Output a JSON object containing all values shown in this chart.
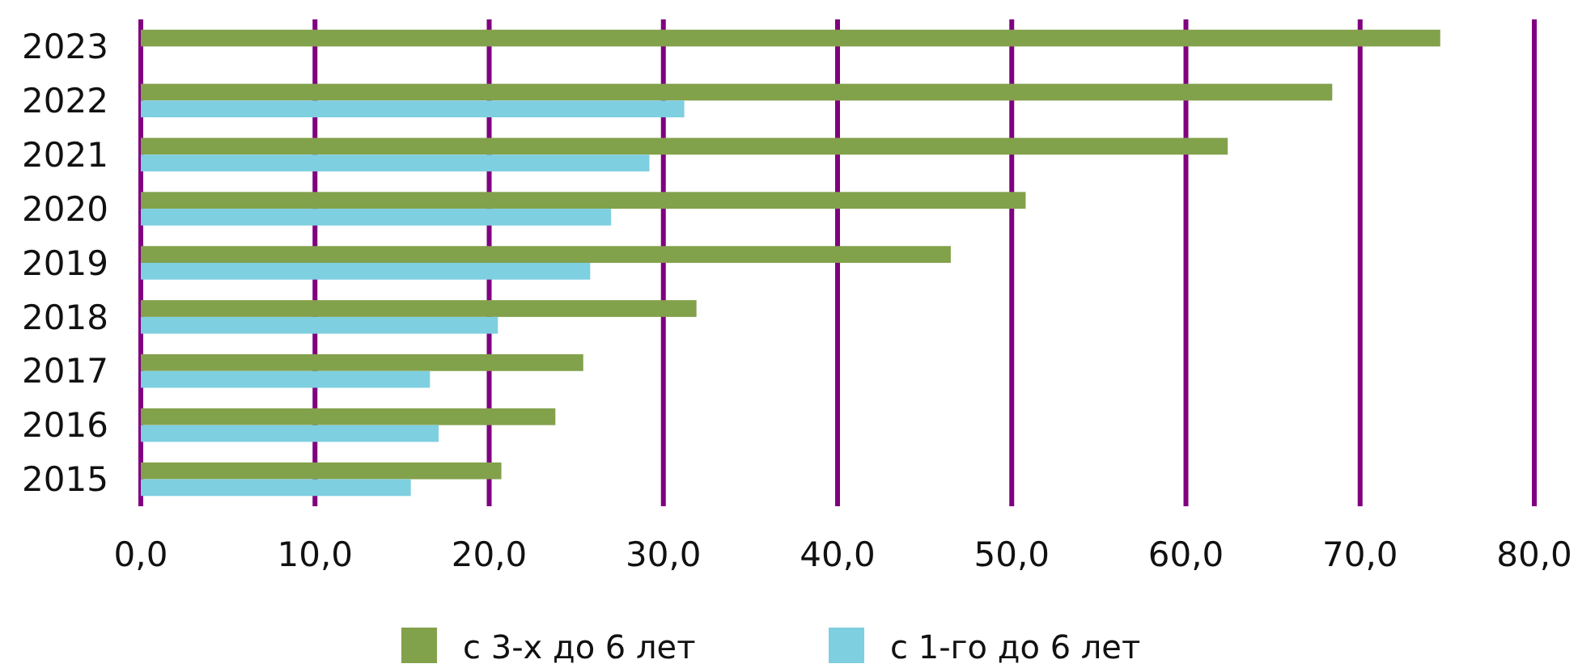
{
  "chart_data": {
    "type": "bar",
    "orientation": "horizontal",
    "categories": [
      "2023",
      "2022",
      "2021",
      "2020",
      "2019",
      "2018",
      "2017",
      "2016",
      "2015"
    ],
    "series": [
      {
        "name": "с 3-х до 6 лет",
        "color": "#82a14b",
        "values": [
          74.6,
          68.4,
          62.4,
          50.8,
          46.5,
          31.9,
          25.4,
          23.8,
          20.7
        ]
      },
      {
        "name": "с 1-го до 6 лет",
        "color": "#7ecfe0",
        "values": [
          null,
          31.2,
          29.2,
          27.0,
          25.8,
          20.5,
          16.6,
          17.1,
          15.5
        ]
      }
    ],
    "xlim": [
      0,
      80
    ],
    "xticks": [
      {
        "value": 0,
        "label": "0,0"
      },
      {
        "value": 10,
        "label": "10,0"
      },
      {
        "value": 20,
        "label": "20,0"
      },
      {
        "value": 30,
        "label": "30,0"
      },
      {
        "value": 40,
        "label": "40,0"
      },
      {
        "value": 50,
        "label": "50,0"
      },
      {
        "value": 60,
        "label": "60,0"
      },
      {
        "value": 70,
        "label": "70,0"
      },
      {
        "value": 80,
        "label": "80,0"
      }
    ],
    "grid": "x",
    "legend": "bottom"
  }
}
